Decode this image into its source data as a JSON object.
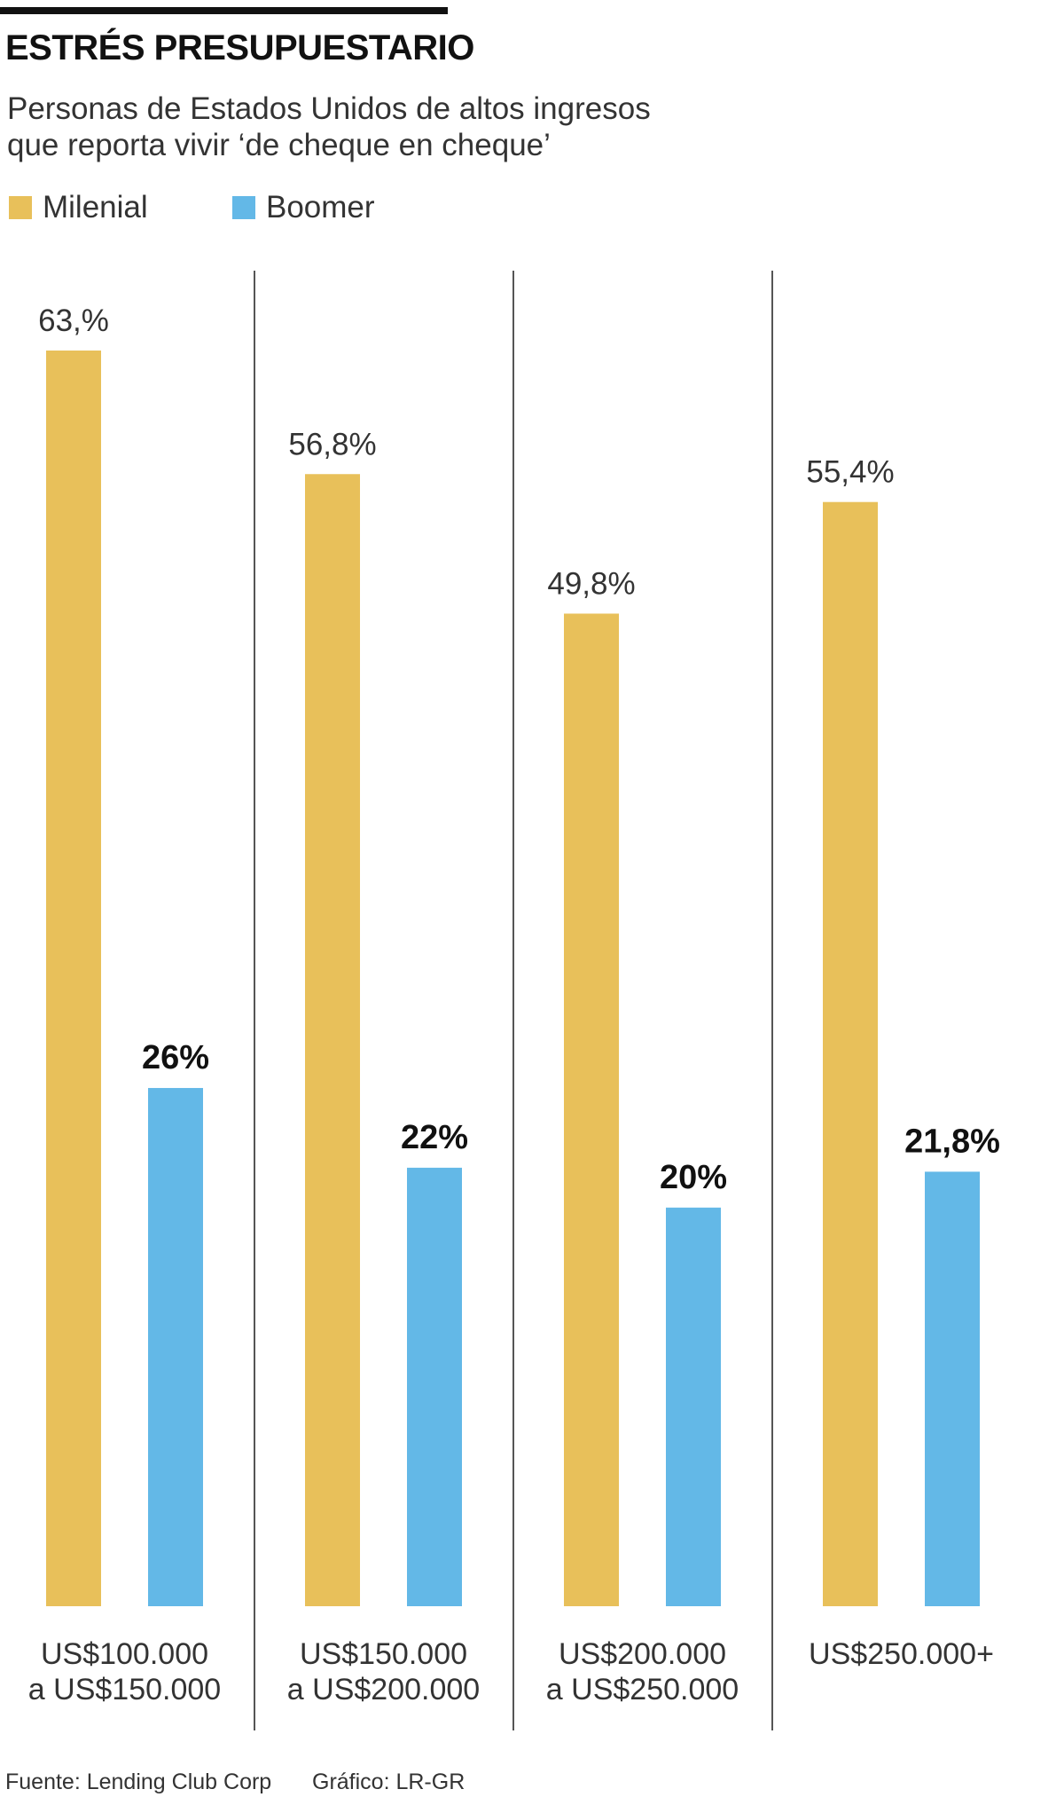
{
  "title": "ESTRÉS PRESUPUESTARIO",
  "subtitle": {
    "line1": "Personas de Estados Unidos de altos ingresos",
    "line2": "que reporta vivir ‘de cheque en cheque’"
  },
  "legend": [
    {
      "label": "Milenial",
      "color": "#E8C05A"
    },
    {
      "label": "Boomer",
      "color": "#63B8E7"
    }
  ],
  "chart_data": {
    "type": "bar",
    "title": "ESTRÉS PRESUPUESTARIO",
    "subtitle": "Personas de Estados Unidos de altos ingresos que reporta vivir ‘de cheque en cheque’",
    "categories": [
      [
        "US$100.000",
        "a US$150.000"
      ],
      [
        "US$150.000",
        "a US$200.000"
      ],
      [
        "US$200.000",
        "a US$250.000"
      ],
      [
        "US$250.000+"
      ]
    ],
    "series": [
      {
        "name": "Milenial",
        "color": "#E8C05A",
        "values": [
          63,
          56.8,
          49.8,
          55.4
        ],
        "labels": [
          "63,%",
          "56,8%",
          "49,8%",
          "55,4%"
        ]
      },
      {
        "name": "Boomer",
        "color": "#63B8E7",
        "values": [
          26,
          22,
          20,
          21.8
        ],
        "labels": [
          "26%",
          "22%",
          "20%",
          "21,8%"
        ]
      }
    ],
    "ylim": [
      0,
      63
    ],
    "xlabel": "",
    "ylabel": "",
    "grid": false,
    "legend_position": "top-left"
  },
  "footer": {
    "source": "Fuente:  Lending Club Corp",
    "credit": "Gráfico: LR-GR"
  }
}
